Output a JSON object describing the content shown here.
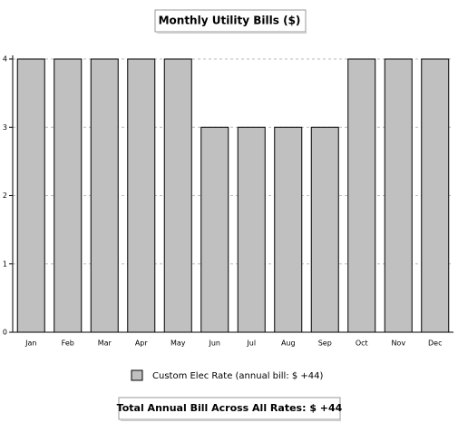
{
  "chart_data": {
    "type": "bar",
    "title": "Monthly Utility Bills ($)",
    "categories": [
      "Jan",
      "Feb",
      "Mar",
      "Apr",
      "May",
      "Jun",
      "Jul",
      "Aug",
      "Sep",
      "Oct",
      "Nov",
      "Dec"
    ],
    "series": [
      {
        "name": "Custom Elec Rate (annual bill: $ +44)",
        "color": "#c0c0c0",
        "values": [
          4,
          4,
          4,
          4,
          4,
          3,
          3,
          3,
          3,
          4,
          4,
          4
        ]
      }
    ],
    "ylim": [
      0,
      4
    ],
    "yticks": [
      0,
      1,
      2,
      3,
      4
    ],
    "grid": true,
    "footer": "Total Annual Bill Across All Rates:  $ +44"
  }
}
